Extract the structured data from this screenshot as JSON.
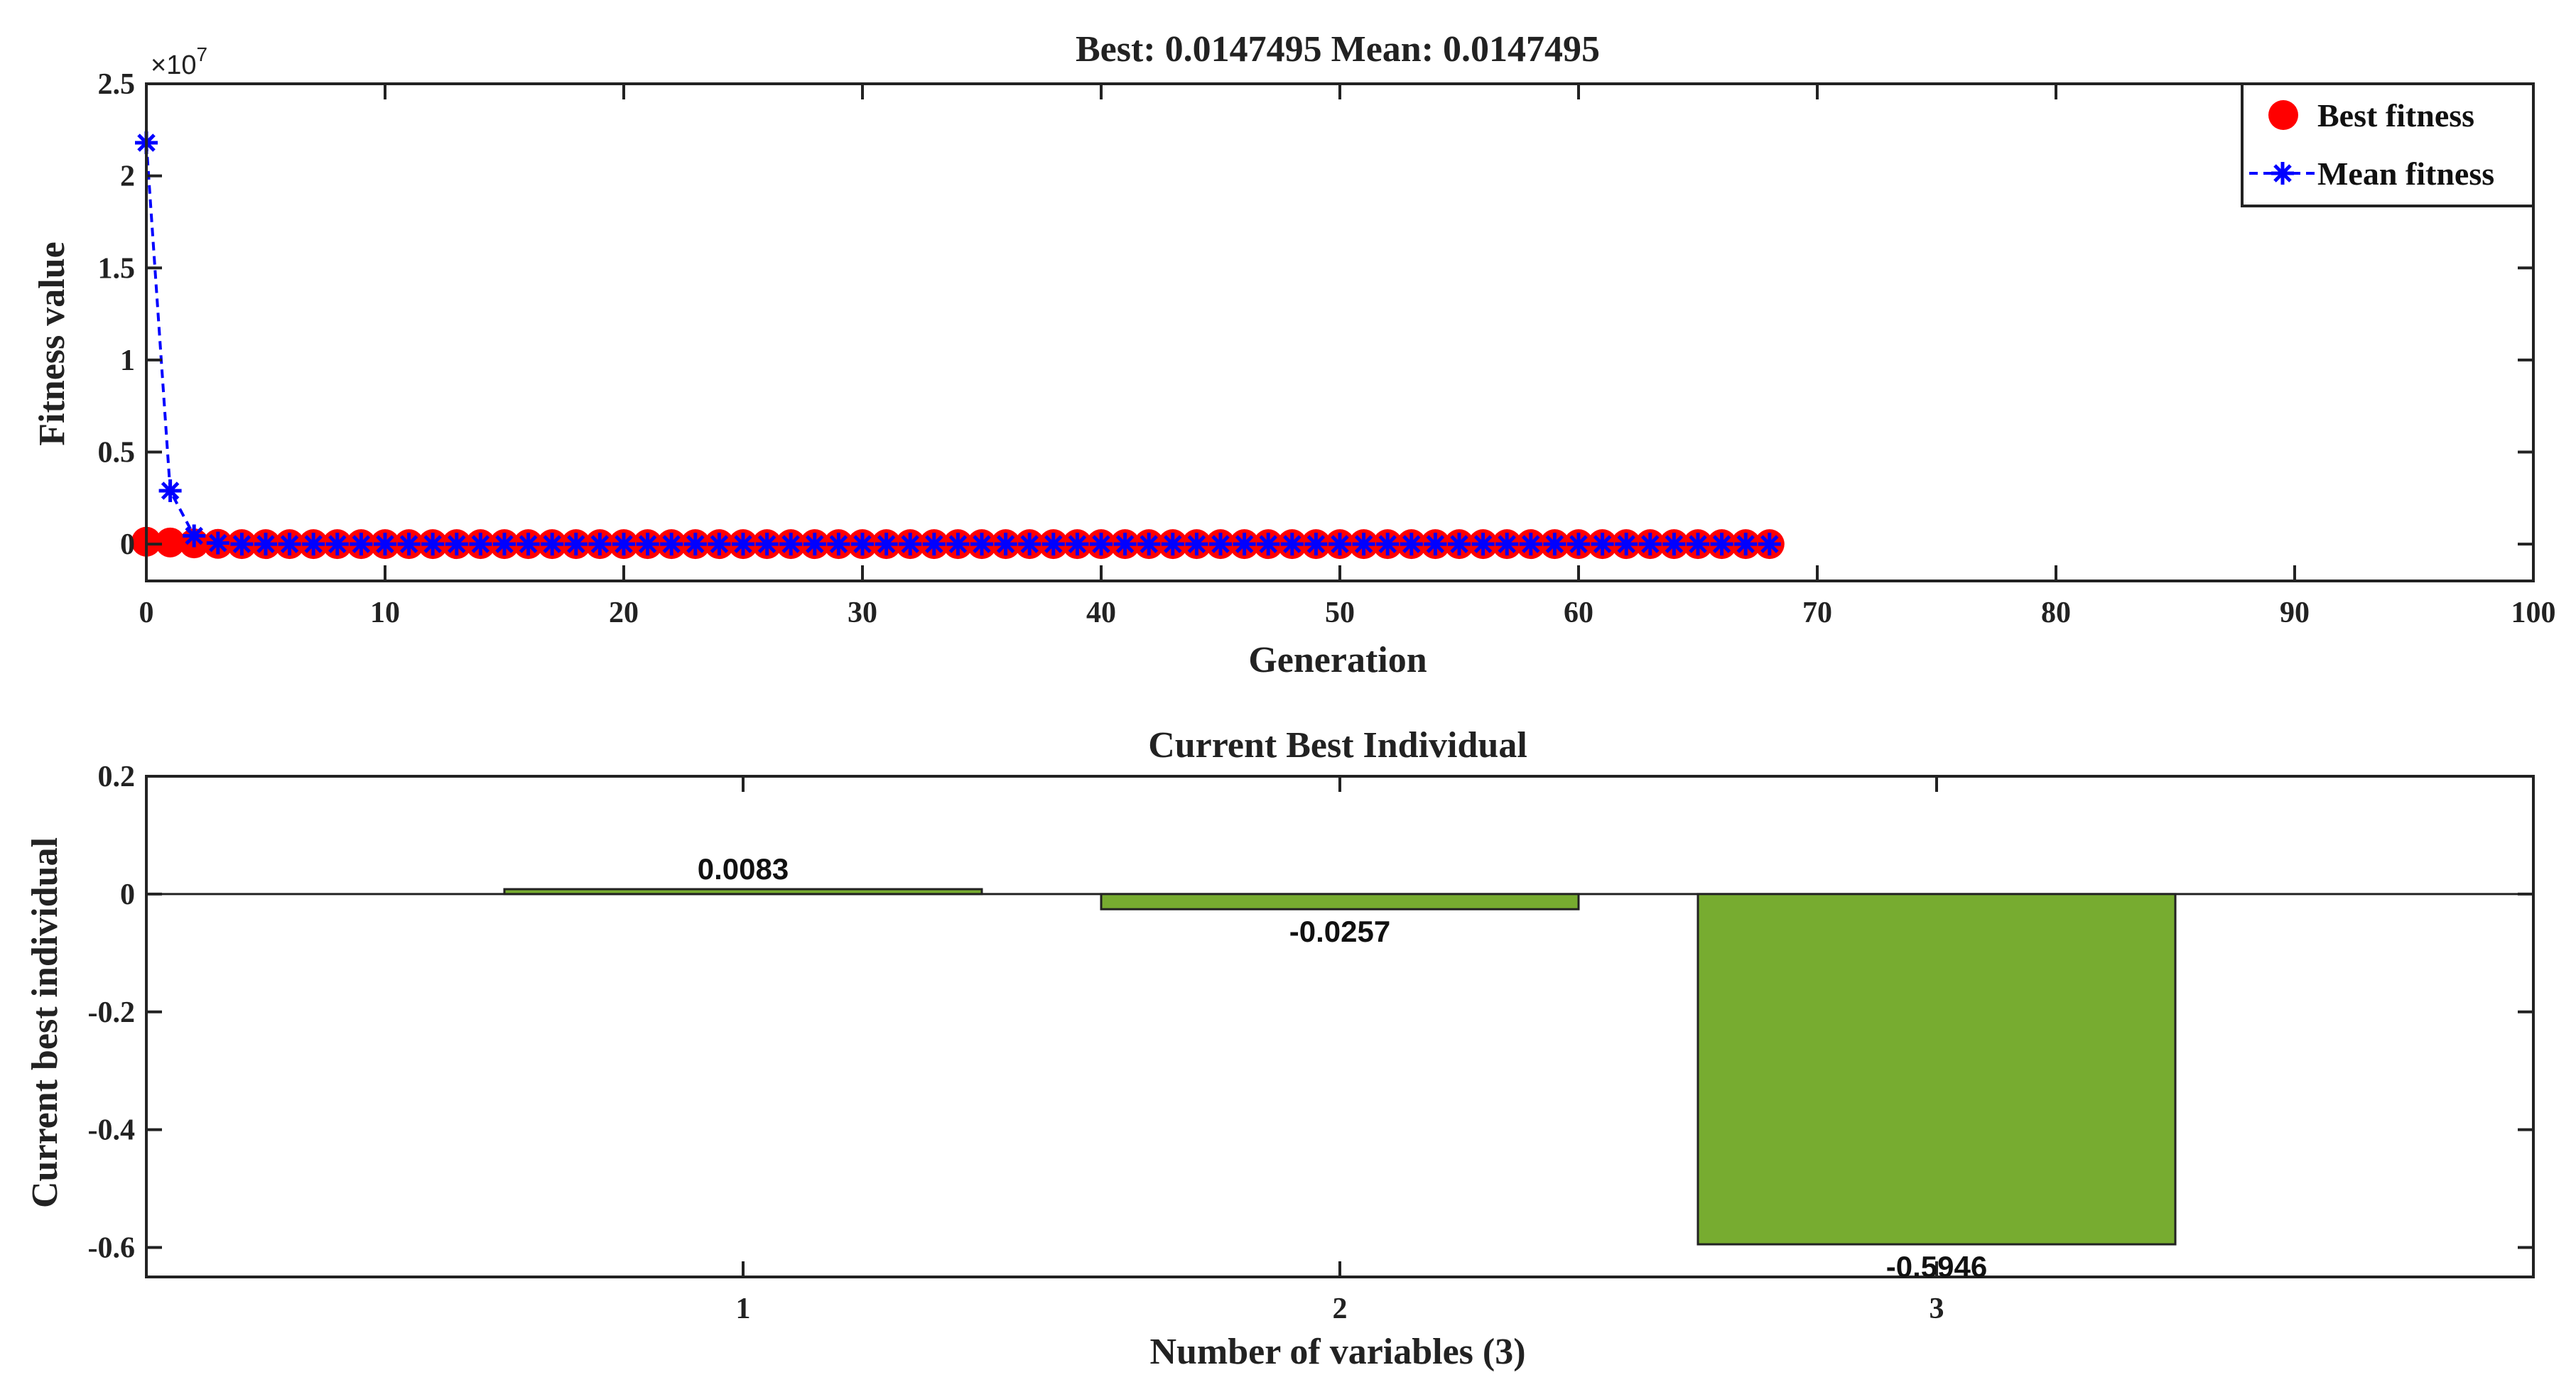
{
  "chart_data": [
    {
      "type": "line",
      "title": "Best: 0.0147495 Mean: 0.0147495",
      "xlabel": "Generation",
      "ylabel": "Fitness value",
      "xlim": [
        0,
        100
      ],
      "ylim": [
        -2000000,
        25000000
      ],
      "x_ticks": [
        0,
        10,
        20,
        30,
        40,
        50,
        60,
        70,
        80,
        90,
        100
      ],
      "y_ticks": [
        0,
        5000000,
        10000000,
        15000000,
        20000000,
        25000000
      ],
      "y_tick_labels": [
        "0",
        "0.5",
        "1",
        "1.5",
        "2",
        "2.5"
      ],
      "y_exponent_label": "×10",
      "y_exponent_power": "7",
      "grid": false,
      "legend": "top-right",
      "series": [
        {
          "name": "Best fitness",
          "marker": "circle",
          "color": "#ff0000",
          "x": [
            0,
            1,
            2,
            3,
            4,
            5,
            6,
            7,
            8,
            9,
            10,
            11,
            12,
            13,
            14,
            15,
            16,
            17,
            18,
            19,
            20,
            21,
            22,
            23,
            24,
            25,
            26,
            27,
            28,
            29,
            30,
            31,
            32,
            33,
            34,
            35,
            36,
            37,
            38,
            39,
            40,
            41,
            42,
            43,
            44,
            45,
            46,
            47,
            48,
            49,
            50,
            51,
            52,
            53,
            54,
            55,
            56,
            57,
            58,
            59,
            60,
            61,
            62,
            63,
            64,
            65,
            66,
            67,
            68
          ],
          "y": [
            130000,
            90000,
            40000,
            15000,
            0,
            0,
            0,
            0,
            0,
            0,
            0,
            0,
            0,
            0,
            0,
            0,
            0,
            0,
            0,
            0,
            0,
            0,
            0,
            0,
            0,
            0,
            0,
            0,
            0,
            0,
            0,
            0,
            0,
            0,
            0,
            0,
            0,
            0,
            0,
            0,
            0,
            0,
            0,
            0,
            0,
            0,
            0,
            0,
            0,
            0,
            0,
            0,
            0,
            0,
            0,
            0,
            0,
            0,
            0,
            0,
            0,
            0,
            0,
            0,
            0,
            0,
            0,
            0,
            0
          ]
        },
        {
          "name": "Mean fitness",
          "marker": "asterisk",
          "line": "dashed",
          "color": "#0000ff",
          "x": [
            0,
            1,
            2,
            3,
            4,
            5,
            6,
            7,
            8,
            9,
            10,
            11,
            12,
            13,
            14,
            15,
            16,
            17,
            18,
            19,
            20,
            21,
            22,
            23,
            24,
            25,
            26,
            27,
            28,
            29,
            30,
            31,
            32,
            33,
            34,
            35,
            36,
            37,
            38,
            39,
            40,
            41,
            42,
            43,
            44,
            45,
            46,
            47,
            48,
            49,
            50,
            51,
            52,
            53,
            54,
            55,
            56,
            57,
            58,
            59,
            60,
            61,
            62,
            63,
            64,
            65,
            66,
            67,
            68
          ],
          "y": [
            21800000,
            2900000,
            450000,
            60000,
            0,
            0,
            0,
            0,
            0,
            0,
            0,
            0,
            0,
            0,
            0,
            0,
            0,
            0,
            0,
            0,
            0,
            0,
            0,
            0,
            0,
            0,
            0,
            0,
            0,
            0,
            0,
            0,
            0,
            0,
            0,
            0,
            0,
            0,
            0,
            0,
            0,
            0,
            0,
            0,
            0,
            0,
            0,
            0,
            0,
            0,
            0,
            0,
            0,
            0,
            0,
            0,
            0,
            0,
            0,
            0,
            0,
            0,
            0,
            0,
            0,
            0,
            0,
            0,
            0
          ]
        }
      ]
    },
    {
      "type": "bar",
      "title": "Current Best Individual",
      "xlabel": "Number of variables (3)",
      "ylabel": "Current best individual",
      "categories": [
        "1",
        "2",
        "3"
      ],
      "values": [
        0.0083,
        -0.0257,
        -0.5946
      ],
      "data_labels": [
        "0.0083",
        "-0.0257",
        "-0.5946"
      ],
      "xlim": [
        0,
        4
      ],
      "ylim": [
        -0.65,
        0.2
      ],
      "y_ticks": [
        0.2,
        0,
        -0.2,
        -0.4,
        -0.6
      ],
      "y_tick_labels": [
        "0.2",
        "0",
        "-0.2",
        "-0.4",
        "-0.6"
      ],
      "bar_color": "#77ac30",
      "grid": false
    }
  ]
}
